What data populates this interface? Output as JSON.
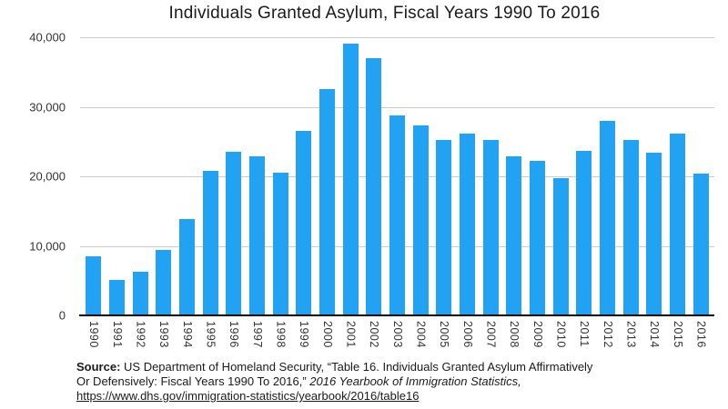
{
  "title": "Individuals Granted Asylum, Fiscal Years 1990 To 2016",
  "colors": {
    "bar": "#22a2f2",
    "gridline": "#cccccc",
    "baseline": "#000000",
    "text": "#1a1a1a"
  },
  "chart_data": {
    "type": "bar",
    "title": "Individuals Granted Asylum, Fiscal Years 1990 To 2016",
    "xlabel": "",
    "ylabel": "",
    "categories": [
      "1990",
      "1991",
      "1992",
      "1993",
      "1994",
      "1995",
      "1996",
      "1997",
      "1998",
      "1999",
      "2000",
      "2001",
      "2002",
      "2003",
      "2004",
      "2005",
      "2006",
      "2007",
      "2008",
      "2009",
      "2010",
      "2011",
      "2012",
      "2013",
      "2014",
      "2015",
      "2016"
    ],
    "values": [
      8472,
      5035,
      6307,
      9477,
      13836,
      20807,
      23537,
      22939,
      20470,
      26578,
      32498,
      39146,
      36958,
      28714,
      27321,
      25257,
      26113,
      25270,
      22930,
      22219,
      19766,
      23669,
      28026,
      25199,
      23374,
      26124,
      20455
    ],
    "ylim": [
      0,
      40000
    ],
    "yticks": [
      "40,000",
      "30,000",
      "20,000",
      "10,000",
      "0"
    ],
    "grid": true,
    "legend_position": "none",
    "bar_color": "#22a2f2"
  },
  "source": {
    "label": "Source:",
    "line1_rest": " US Department of Homeland Security, “Table 16. Individuals Granted Asylum Affirmatively",
    "line2_normal": "Or Defensively: Fiscal Years 1990 To 2016,” ",
    "line2_italic": "2016 Yearbook of Immigration Statistics,",
    "link": "https://www.dhs.gov/immigration-statistics/yearbook/2016/table16"
  }
}
